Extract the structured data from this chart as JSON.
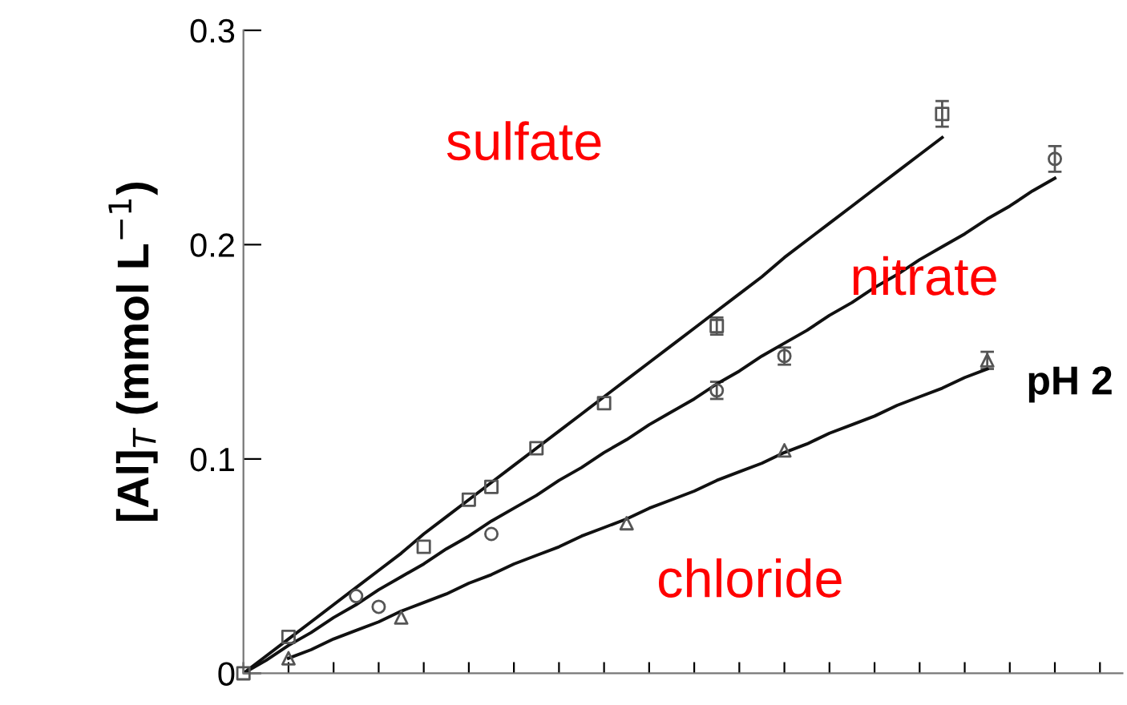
{
  "chart_data": {
    "type": "scatter",
    "ylabel": "[Al]$_{T}$ (mmol L$^{−1}$)",
    "categories": [
      null,
      null,
      null,
      null,
      null,
      null,
      null,
      null,
      null,
      null,
      null,
      null,
      null,
      null,
      null,
      null,
      null,
      null,
      null,
      null,
      null,
      null,
      null,
      null,
      null,
      null,
      null,
      null,
      null,
      null,
      null,
      null,
      null,
      null,
      null,
      null,
      null,
      null,
      null,
      null
    ],
    "ylim": [
      0,
      0.3
    ],
    "yticks": [
      0,
      0.1,
      0.2,
      0.3
    ],
    "tick_labels": "y",
    "series": [
      {
        "marker": "square",
        "color": "#555555",
        "values": [
          0,
          null,
          0.017,
          null,
          null,
          null,
          null,
          null,
          0.059,
          null,
          0.081,
          0.087,
          null,
          0.105,
          null,
          null,
          0.126,
          null,
          null,
          null,
          null,
          0.162,
          null,
          null,
          null,
          null,
          null,
          null,
          null,
          null,
          null,
          0.261,
          null,
          null,
          null,
          null,
          null,
          null,
          null,
          null
        ],
        "errors": [
          null,
          null,
          null,
          null,
          null,
          null,
          null,
          null,
          null,
          null,
          null,
          null,
          null,
          null,
          null,
          null,
          null,
          null,
          null,
          null,
          null,
          0.004,
          null,
          null,
          null,
          null,
          null,
          null,
          null,
          null,
          null,
          0.006,
          null,
          null,
          null,
          null,
          null,
          null,
          null,
          null
        ]
      },
      {
        "marker": "circle",
        "color": "#555555",
        "values": [
          null,
          null,
          null,
          null,
          null,
          0.036,
          0.031,
          null,
          null,
          null,
          null,
          0.065,
          null,
          null,
          null,
          null,
          null,
          null,
          null,
          null,
          null,
          0.132,
          null,
          null,
          0.148,
          null,
          null,
          null,
          null,
          null,
          null,
          null,
          null,
          null,
          null,
          null,
          0.24,
          null,
          null,
          null
        ],
        "errors": [
          null,
          null,
          null,
          null,
          null,
          null,
          null,
          null,
          null,
          null,
          null,
          null,
          null,
          null,
          null,
          null,
          null,
          null,
          null,
          null,
          null,
          0.004,
          null,
          null,
          0.004,
          null,
          null,
          null,
          null,
          null,
          null,
          null,
          null,
          null,
          null,
          null,
          0.006,
          null,
          null,
          null
        ]
      },
      {
        "marker": "triangle",
        "color": "#555555",
        "values": [
          null,
          null,
          0.007,
          null,
          null,
          null,
          null,
          0.026,
          null,
          null,
          null,
          null,
          null,
          null,
          null,
          null,
          null,
          0.07,
          null,
          null,
          null,
          null,
          null,
          null,
          0.104,
          null,
          null,
          null,
          null,
          null,
          null,
          null,
          null,
          0.146,
          null,
          null,
          null,
          null,
          null,
          null
        ],
        "errors": [
          null,
          null,
          null,
          null,
          null,
          null,
          null,
          null,
          null,
          null,
          null,
          null,
          null,
          null,
          null,
          null,
          null,
          null,
          null,
          null,
          null,
          null,
          null,
          null,
          null,
          null,
          null,
          null,
          null,
          null,
          null,
          null,
          null,
          0.004,
          null,
          null,
          null,
          null,
          null,
          null
        ]
      },
      {
        "type": "line",
        "color": "#111111",
        "values": [
          0,
          0.008,
          0.016,
          0.024,
          0.032,
          0.04,
          0.048,
          0.056,
          0.065,
          0.073,
          0.081,
          0.089,
          0.097,
          0.105,
          0.113,
          0.121,
          0.129,
          0.137,
          0.145,
          0.153,
          0.161,
          0.169,
          0.177,
          0.185,
          0.194,
          0.202,
          0.21,
          0.218,
          0.226,
          0.234,
          0.242,
          0.25,
          null,
          null,
          null,
          null,
          null,
          null,
          null,
          null
        ]
      },
      {
        "type": "line",
        "color": "#111111",
        "values": [
          0,
          0.006,
          0.013,
          0.019,
          0.026,
          0.032,
          0.039,
          0.045,
          0.051,
          0.058,
          0.064,
          0.071,
          0.077,
          0.083,
          0.09,
          0.096,
          0.103,
          0.109,
          0.116,
          0.122,
          0.128,
          0.135,
          0.141,
          0.148,
          0.154,
          0.16,
          0.167,
          0.173,
          0.18,
          0.186,
          0.193,
          0.199,
          0.205,
          0.212,
          0.218,
          0.225,
          0.231,
          null,
          null,
          null
        ]
      },
      {
        "type": "line",
        "color": "#111111",
        "values": [
          null,
          null,
          0.007,
          0.011,
          0.016,
          0.02,
          0.024,
          0.029,
          0.033,
          0.037,
          0.042,
          0.046,
          0.051,
          0.055,
          0.059,
          0.064,
          0.068,
          0.072,
          0.077,
          0.081,
          0.085,
          0.09,
          0.094,
          0.098,
          0.103,
          0.107,
          0.112,
          0.116,
          0.12,
          0.125,
          0.129,
          0.133,
          0.138,
          0.142,
          null,
          null,
          null,
          null,
          null,
          null
        ]
      }
    ],
    "annotations": [
      "sulfate",
      "nitrate",
      "chloride",
      "pH 2"
    ]
  }
}
